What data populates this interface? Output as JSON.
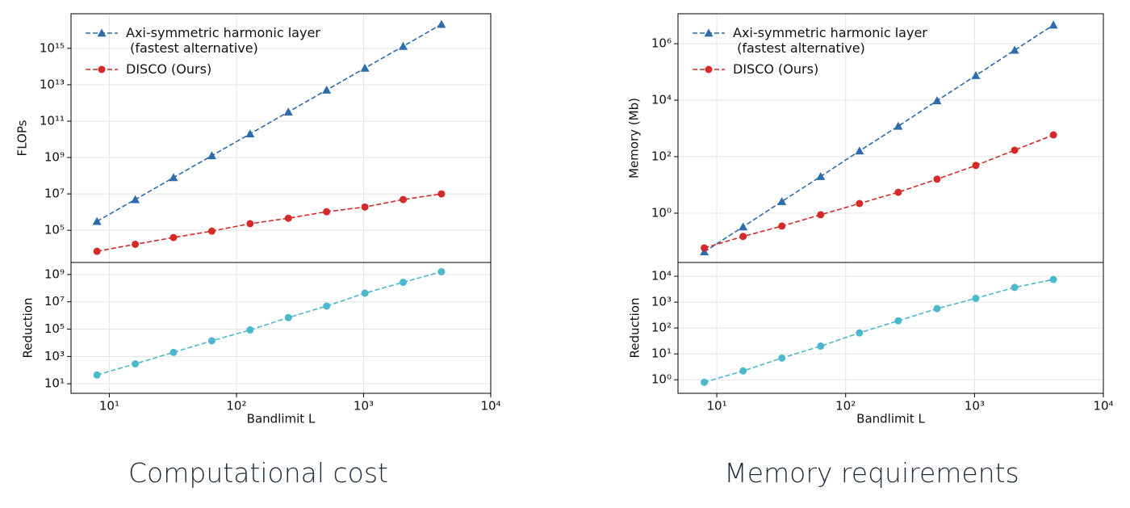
{
  "chart_data": [
    {
      "type": "line",
      "ylabel": "FLOPs",
      "xscale": "log",
      "yscale": "log",
      "grid": true,
      "legend": "upper left",
      "x": [
        8,
        16,
        32,
        64,
        128,
        256,
        512,
        1024,
        2048,
        4096
      ],
      "xlim": [
        5,
        10000
      ],
      "xticks": [
        10,
        100,
        1000,
        10000
      ],
      "ylim": [
        1700,
        8e+16
      ],
      "yticks": [
        {
          "value": 100000.0,
          "label": "10⁵"
        },
        {
          "value": 10000000.0,
          "label": "10⁷"
        },
        {
          "value": 1000000000.0,
          "label": "10⁹"
        },
        {
          "value": 100000000000.0,
          "label": "10¹¹"
        },
        {
          "value": 10000000000000.0,
          "label": "10¹³"
        },
        {
          "value": 1000000000000000.0,
          "label": "10¹⁵"
        }
      ],
      "series": [
        {
          "name": "Axi-symmetric harmonic layer\n (fastest alternative)",
          "color": "#2d6cab",
          "marker": "^",
          "linestyle": "--",
          "values": [
            310000,
            4900000,
            79000000,
            1260000000.0,
            20000000000.0,
            320000000000.0,
            5100000000000.0,
            82000000000000.0,
            1300000000000000.0,
            2.1e+16
          ]
        },
        {
          "name": "DISCO (Ours)",
          "color": "#d42a2a",
          "marker": "o",
          "linestyle": "--",
          "values": [
            7000,
            17000,
            40000,
            90000,
            230000,
            460000,
            1050000,
            1900000,
            4900000,
            10000000
          ]
        }
      ]
    },
    {
      "type": "line",
      "ylabel": "Reduction",
      "xlabel": "Bandlimit L",
      "xscale": "log",
      "yscale": "log",
      "grid": true,
      "x": [
        8,
        16,
        32,
        64,
        128,
        256,
        512,
        1024,
        2048,
        4096
      ],
      "xlim": [
        5,
        10000
      ],
      "xticks": [
        {
          "value": 10,
          "label": "10¹"
        },
        {
          "value": 100,
          "label": "10²"
        },
        {
          "value": 1000,
          "label": "10³"
        },
        {
          "value": 10000,
          "label": "10⁴"
        }
      ],
      "ylim": [
        2,
        7600000000.0
      ],
      "yticks": [
        {
          "value": 10,
          "label": "10¹"
        },
        {
          "value": 1000,
          "label": "10³"
        },
        {
          "value": 100000,
          "label": "10⁵"
        },
        {
          "value": 10000000.0,
          "label": "10⁷"
        },
        {
          "value": 1000000000.0,
          "label": "10⁹"
        }
      ],
      "series": [
        {
          "color": "#4cb8cc",
          "marker": "o",
          "linestyle": "--",
          "values": [
            44,
            290,
            2000,
            14000,
            87000,
            700000,
            4900000,
            43000000,
            270000000,
            1600000000.0
          ]
        }
      ]
    },
    {
      "type": "line",
      "ylabel": "Memory (Mb)",
      "xscale": "log",
      "yscale": "log",
      "grid": true,
      "legend": "upper left",
      "x": [
        8,
        16,
        32,
        64,
        128,
        256,
        512,
        1024,
        2048,
        4096
      ],
      "xlim": [
        5,
        10000
      ],
      "xticks": [
        10,
        100,
        1000,
        10000
      ],
      "ylim": [
        0.018,
        11500000.0
      ],
      "yticks": [
        {
          "value": 1,
          "label": "10⁰"
        },
        {
          "value": 100,
          "label": "10²"
        },
        {
          "value": 10000,
          "label": "10⁴"
        },
        {
          "value": 1000000,
          "label": "10⁶"
        }
      ],
      "series": [
        {
          "name": "Axi-symmetric harmonic layer\n (fastest alternative)",
          "color": "#2d6cab",
          "marker": "^",
          "linestyle": "--",
          "values": [
            0.043,
            0.33,
            2.6,
            20,
            160,
            1200,
            9600,
            75000,
            590000,
            4600000
          ]
        },
        {
          "name": "DISCO (Ours)",
          "color": "#d42a2a",
          "marker": "o",
          "linestyle": "--",
          "values": [
            0.059,
            0.15,
            0.35,
            0.88,
            2.2,
            5.5,
            16,
            49,
            170,
            590
          ]
        }
      ]
    },
    {
      "type": "line",
      "ylabel": "Reduction",
      "xlabel": "Bandlimit L",
      "xscale": "log",
      "yscale": "log",
      "grid": true,
      "x": [
        8,
        16,
        32,
        64,
        128,
        256,
        512,
        1024,
        2048,
        4096
      ],
      "xlim": [
        5,
        10000
      ],
      "xticks": [
        {
          "value": 10,
          "label": "10¹"
        },
        {
          "value": 100,
          "label": "10²"
        },
        {
          "value": 1000,
          "label": "10³"
        },
        {
          "value": 10000,
          "label": "10⁴"
        }
      ],
      "ylim": [
        0.3,
        34000
      ],
      "yticks": [
        {
          "value": 1,
          "label": "10⁰"
        },
        {
          "value": 10,
          "label": "10¹"
        },
        {
          "value": 100,
          "label": "10²"
        },
        {
          "value": 1000,
          "label": "10³"
        },
        {
          "value": 10000,
          "label": "10⁴"
        }
      ],
      "series": [
        {
          "color": "#4cb8cc",
          "marker": "o",
          "linestyle": "--",
          "values": [
            0.8,
            2.2,
            6.9,
            20,
            65,
            190,
            560,
            1400,
            3700,
            7500
          ]
        }
      ]
    }
  ],
  "captions": [
    "Computational cost",
    "Memory requirements"
  ]
}
